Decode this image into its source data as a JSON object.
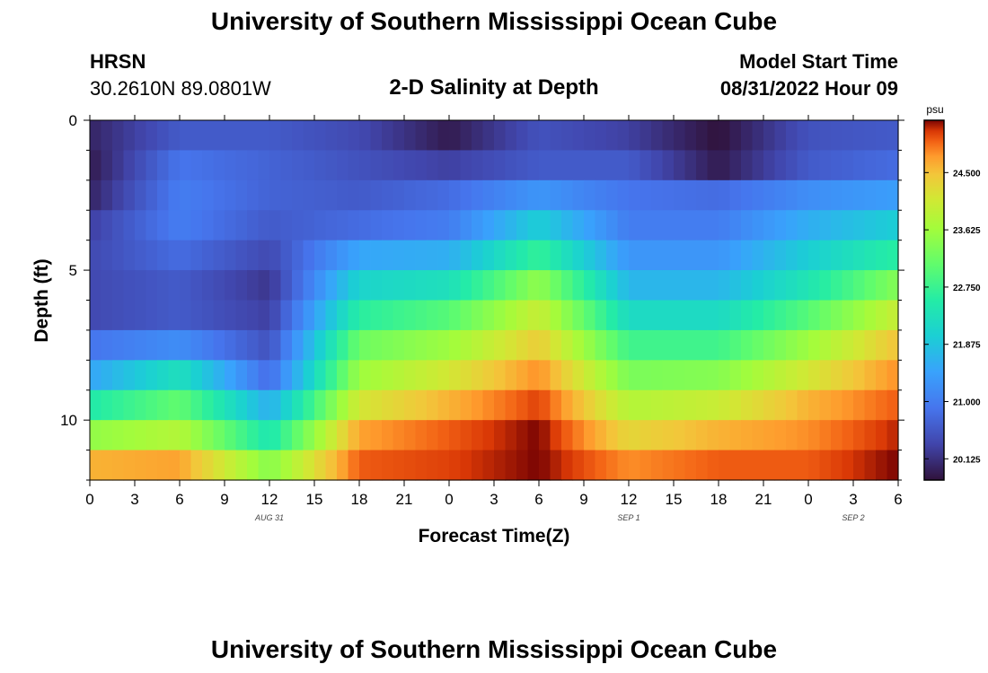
{
  "header": {
    "title": "University of Southern Mississippi Ocean Cube",
    "station": "HRSN",
    "coords": "30.2610N  89.0801W",
    "subtitle": "2-D Salinity at Depth",
    "model_label": "Model Start Time",
    "model_time": "08/31/2022 Hour 09"
  },
  "footer": {
    "title": "University of Southern Mississippi Ocean Cube"
  },
  "chart_data": {
    "type": "heatmap",
    "title": "2-D Salinity at Depth",
    "xlabel": "Forecast Time(Z)",
    "ylabel": "Depth (ft)",
    "colorbar_unit": "psu",
    "x_ticks": [
      "0",
      "3",
      "6",
      "9",
      "12",
      "15",
      "18",
      "21",
      "0",
      "3",
      "6",
      "9",
      "12",
      "15",
      "18",
      "21",
      "0",
      "3",
      "6"
    ],
    "x_range_hours": [
      0,
      54
    ],
    "date_labels": [
      {
        "hour": 12,
        "text": "AUG 31"
      },
      {
        "hour": 36,
        "text": "SEP 1"
      },
      {
        "hour": 51,
        "text": "SEP 2"
      }
    ],
    "y_ticks": [
      0,
      5,
      10
    ],
    "y_range_ft": [
      0,
      12
    ],
    "depth_layers": 12,
    "color_range": [
      19.8,
      25.3
    ],
    "colorbar_ticks": [
      "20.125",
      "21.000",
      "21.875",
      "22.750",
      "23.625",
      "24.500"
    ],
    "colorbar_tick_values": [
      20.125,
      21.0,
      21.875,
      22.75,
      23.625,
      24.5
    ],
    "series": [
      {
        "hour": 0,
        "values": [
          20.0,
          19.9,
          20.0,
          20.3,
          20.4,
          20.4,
          20.4,
          20.9,
          21.5,
          22.5,
          23.5,
          24.6
        ]
      },
      {
        "hour": 6,
        "values": [
          20.6,
          20.9,
          21.0,
          21.0,
          20.8,
          20.6,
          20.6,
          21.2,
          22.3,
          23.1,
          23.8,
          24.7
        ]
      },
      {
        "hour": 12,
        "values": [
          20.6,
          20.7,
          20.7,
          20.6,
          20.4,
          20.2,
          20.3,
          20.5,
          20.8,
          21.6,
          22.4,
          23.4
        ]
      },
      {
        "hour": 18,
        "values": [
          20.4,
          20.5,
          20.6,
          20.8,
          21.5,
          22.1,
          22.6,
          23.2,
          23.6,
          24.1,
          24.7,
          25.0
        ]
      },
      {
        "hour": 24,
        "values": [
          19.9,
          20.3,
          20.8,
          21.0,
          21.6,
          22.3,
          23.0,
          23.6,
          24.1,
          24.6,
          25.0,
          25.1
        ]
      },
      {
        "hour": 30,
        "values": [
          20.5,
          20.6,
          21.3,
          22.0,
          22.7,
          23.5,
          24.0,
          24.4,
          24.8,
          25.1,
          25.3,
          25.3
        ]
      },
      {
        "hour": 36,
        "values": [
          20.3,
          20.6,
          20.9,
          21.0,
          21.3,
          21.7,
          22.2,
          22.8,
          23.3,
          23.8,
          24.3,
          24.8
        ]
      },
      {
        "hour": 42,
        "values": [
          19.8,
          19.9,
          20.8,
          21.0,
          21.3,
          21.7,
          22.2,
          22.8,
          23.4,
          24.0,
          24.6,
          25.0
        ]
      },
      {
        "hour": 48,
        "values": [
          20.5,
          20.6,
          21.2,
          21.6,
          22.0,
          22.4,
          23.0,
          23.6,
          24.1,
          24.6,
          24.8,
          25.0
        ]
      },
      {
        "hour": 54,
        "values": [
          20.6,
          20.8,
          21.4,
          22.0,
          22.6,
          23.4,
          24.0,
          24.5,
          24.8,
          25.0,
          25.2,
          25.3
        ]
      }
    ]
  }
}
